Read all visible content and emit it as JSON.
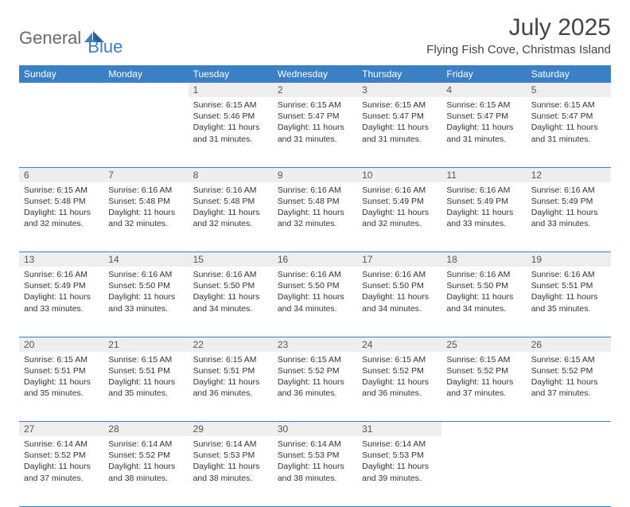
{
  "brand": {
    "part1": "General",
    "part2": "Blue"
  },
  "title": "July 2025",
  "location": "Flying Fish Cove, Christmas Island",
  "colors": {
    "accent": "#3b7fc4",
    "header_text": "#ffffff",
    "daynum_bg": "#eeeeee",
    "daynum_text": "#555555",
    "body_text": "#333333",
    "grid_line": "#3b7fc4",
    "background": "#ffffff",
    "logo_gray": "#6a6a6a"
  },
  "typography": {
    "title_fontsize": 30,
    "location_fontsize": 15,
    "dayheader_fontsize": 12,
    "daynum_fontsize": 12,
    "cell_fontsize": 10.5
  },
  "day_headers": [
    "Sunday",
    "Monday",
    "Tuesday",
    "Wednesday",
    "Thursday",
    "Friday",
    "Saturday"
  ],
  "weeks": [
    [
      {
        "num": "",
        "lines": []
      },
      {
        "num": "",
        "lines": []
      },
      {
        "num": "1",
        "lines": [
          "Sunrise: 6:15 AM",
          "Sunset: 5:46 PM",
          "Daylight: 11 hours",
          "and 31 minutes."
        ]
      },
      {
        "num": "2",
        "lines": [
          "Sunrise: 6:15 AM",
          "Sunset: 5:47 PM",
          "Daylight: 11 hours",
          "and 31 minutes."
        ]
      },
      {
        "num": "3",
        "lines": [
          "Sunrise: 6:15 AM",
          "Sunset: 5:47 PM",
          "Daylight: 11 hours",
          "and 31 minutes."
        ]
      },
      {
        "num": "4",
        "lines": [
          "Sunrise: 6:15 AM",
          "Sunset: 5:47 PM",
          "Daylight: 11 hours",
          "and 31 minutes."
        ]
      },
      {
        "num": "5",
        "lines": [
          "Sunrise: 6:15 AM",
          "Sunset: 5:47 PM",
          "Daylight: 11 hours",
          "and 31 minutes."
        ]
      }
    ],
    [
      {
        "num": "6",
        "lines": [
          "Sunrise: 6:15 AM",
          "Sunset: 5:48 PM",
          "Daylight: 11 hours",
          "and 32 minutes."
        ]
      },
      {
        "num": "7",
        "lines": [
          "Sunrise: 6:16 AM",
          "Sunset: 5:48 PM",
          "Daylight: 11 hours",
          "and 32 minutes."
        ]
      },
      {
        "num": "8",
        "lines": [
          "Sunrise: 6:16 AM",
          "Sunset: 5:48 PM",
          "Daylight: 11 hours",
          "and 32 minutes."
        ]
      },
      {
        "num": "9",
        "lines": [
          "Sunrise: 6:16 AM",
          "Sunset: 5:48 PM",
          "Daylight: 11 hours",
          "and 32 minutes."
        ]
      },
      {
        "num": "10",
        "lines": [
          "Sunrise: 6:16 AM",
          "Sunset: 5:49 PM",
          "Daylight: 11 hours",
          "and 32 minutes."
        ]
      },
      {
        "num": "11",
        "lines": [
          "Sunrise: 6:16 AM",
          "Sunset: 5:49 PM",
          "Daylight: 11 hours",
          "and 33 minutes."
        ]
      },
      {
        "num": "12",
        "lines": [
          "Sunrise: 6:16 AM",
          "Sunset: 5:49 PM",
          "Daylight: 11 hours",
          "and 33 minutes."
        ]
      }
    ],
    [
      {
        "num": "13",
        "lines": [
          "Sunrise: 6:16 AM",
          "Sunset: 5:49 PM",
          "Daylight: 11 hours",
          "and 33 minutes."
        ]
      },
      {
        "num": "14",
        "lines": [
          "Sunrise: 6:16 AM",
          "Sunset: 5:50 PM",
          "Daylight: 11 hours",
          "and 33 minutes."
        ]
      },
      {
        "num": "15",
        "lines": [
          "Sunrise: 6:16 AM",
          "Sunset: 5:50 PM",
          "Daylight: 11 hours",
          "and 34 minutes."
        ]
      },
      {
        "num": "16",
        "lines": [
          "Sunrise: 6:16 AM",
          "Sunset: 5:50 PM",
          "Daylight: 11 hours",
          "and 34 minutes."
        ]
      },
      {
        "num": "17",
        "lines": [
          "Sunrise: 6:16 AM",
          "Sunset: 5:50 PM",
          "Daylight: 11 hours",
          "and 34 minutes."
        ]
      },
      {
        "num": "18",
        "lines": [
          "Sunrise: 6:16 AM",
          "Sunset: 5:50 PM",
          "Daylight: 11 hours",
          "and 34 minutes."
        ]
      },
      {
        "num": "19",
        "lines": [
          "Sunrise: 6:16 AM",
          "Sunset: 5:51 PM",
          "Daylight: 11 hours",
          "and 35 minutes."
        ]
      }
    ],
    [
      {
        "num": "20",
        "lines": [
          "Sunrise: 6:15 AM",
          "Sunset: 5:51 PM",
          "Daylight: 11 hours",
          "and 35 minutes."
        ]
      },
      {
        "num": "21",
        "lines": [
          "Sunrise: 6:15 AM",
          "Sunset: 5:51 PM",
          "Daylight: 11 hours",
          "and 35 minutes."
        ]
      },
      {
        "num": "22",
        "lines": [
          "Sunrise: 6:15 AM",
          "Sunset: 5:51 PM",
          "Daylight: 11 hours",
          "and 36 minutes."
        ]
      },
      {
        "num": "23",
        "lines": [
          "Sunrise: 6:15 AM",
          "Sunset: 5:52 PM",
          "Daylight: 11 hours",
          "and 36 minutes."
        ]
      },
      {
        "num": "24",
        "lines": [
          "Sunrise: 6:15 AM",
          "Sunset: 5:52 PM",
          "Daylight: 11 hours",
          "and 36 minutes."
        ]
      },
      {
        "num": "25",
        "lines": [
          "Sunrise: 6:15 AM",
          "Sunset: 5:52 PM",
          "Daylight: 11 hours",
          "and 37 minutes."
        ]
      },
      {
        "num": "26",
        "lines": [
          "Sunrise: 6:15 AM",
          "Sunset: 5:52 PM",
          "Daylight: 11 hours",
          "and 37 minutes."
        ]
      }
    ],
    [
      {
        "num": "27",
        "lines": [
          "Sunrise: 6:14 AM",
          "Sunset: 5:52 PM",
          "Daylight: 11 hours",
          "and 37 minutes."
        ]
      },
      {
        "num": "28",
        "lines": [
          "Sunrise: 6:14 AM",
          "Sunset: 5:52 PM",
          "Daylight: 11 hours",
          "and 38 minutes."
        ]
      },
      {
        "num": "29",
        "lines": [
          "Sunrise: 6:14 AM",
          "Sunset: 5:53 PM",
          "Daylight: 11 hours",
          "and 38 minutes."
        ]
      },
      {
        "num": "30",
        "lines": [
          "Sunrise: 6:14 AM",
          "Sunset: 5:53 PM",
          "Daylight: 11 hours",
          "and 38 minutes."
        ]
      },
      {
        "num": "31",
        "lines": [
          "Sunrise: 6:14 AM",
          "Sunset: 5:53 PM",
          "Daylight: 11 hours",
          "and 39 minutes."
        ]
      },
      {
        "num": "",
        "lines": []
      },
      {
        "num": "",
        "lines": []
      }
    ]
  ]
}
